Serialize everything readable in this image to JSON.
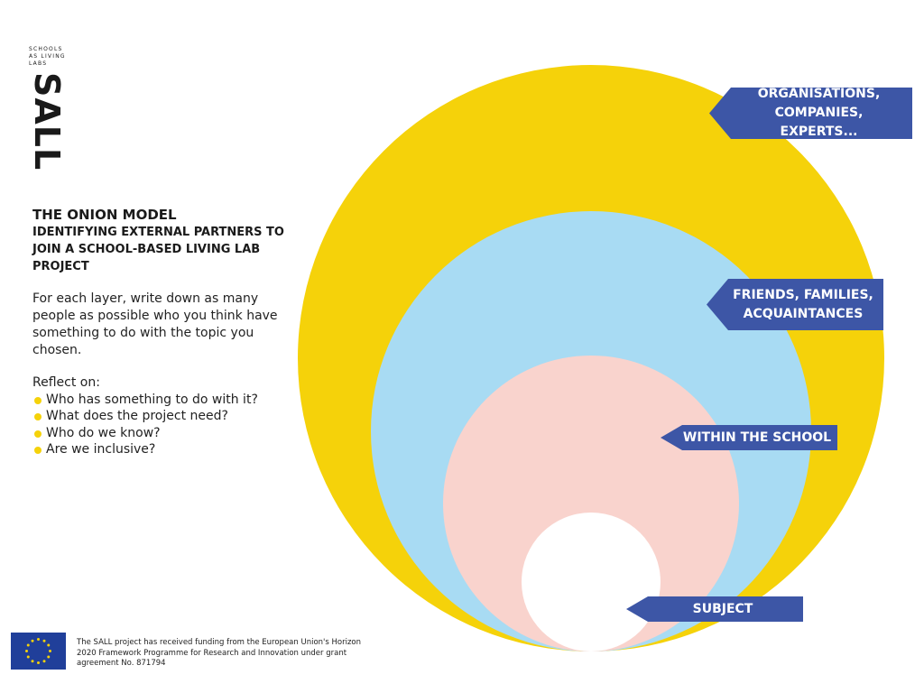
{
  "logo": {
    "small_text": "SCHOOLS AS LIVING LABS",
    "name": "SALL"
  },
  "title": "THE ONION MODEL",
  "subtitle": "IDENTIFYING EXTERNAL PARTNERS TO JOIN A SCHOOL-BASED LIVING LAB PROJECT",
  "description": "For each layer, write down as many people as possible who you think have something to do with the topic you chosen.",
  "reflect": {
    "heading": "Reflect on:",
    "items": [
      "Who has something to do with it?",
      "What does the project need?",
      "Who do we know?",
      "Are we inclusive?"
    ]
  },
  "layers": [
    {
      "label": "ORGANISATIONS, COMPANIES, EXPERTS...",
      "color": "#f5d20a"
    },
    {
      "label": "FRIENDS, FAMILIES, ACQUAINTANCES",
      "color": "#a8dbf3"
    },
    {
      "label": "WITHIN THE SCHOOL",
      "color": "#f9d3cd"
    },
    {
      "label": "SUBJECT",
      "color": "#ffffff"
    }
  ],
  "label_color": "#3d56a6",
  "footer": {
    "funding": "The SALL project has received funding from the European Union's Horizon 2020 Framework Programme for Research and Innovation under grant agreement No. 871794"
  }
}
